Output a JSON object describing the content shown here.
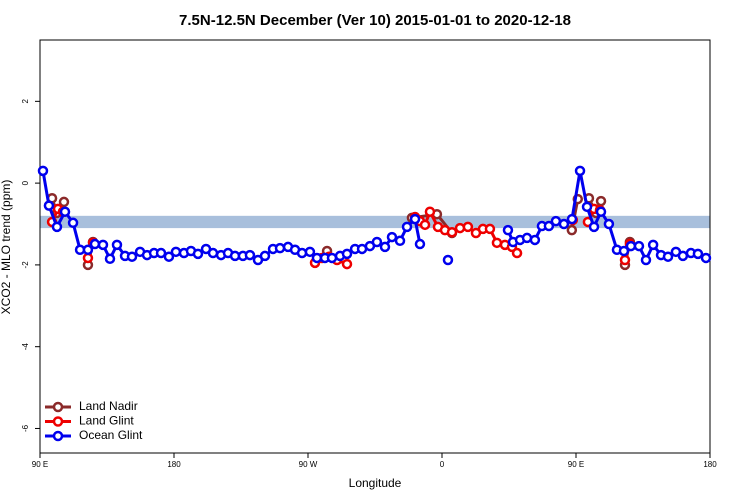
{
  "chart_data": {
    "type": "line",
    "title": "7.5N-12.5N December (Ver 10)   2015-01-01 to 2020-12-18",
    "x_label": "Longitude",
    "y_label": "XCO2 - MLO trend (ppm)",
    "xlim": [
      90,
      540
    ],
    "xticks": [
      {
        "value": 90,
        "label": "90 E"
      },
      {
        "value": 180,
        "label": "180"
      },
      {
        "value": 270,
        "label": "90 W"
      },
      {
        "value": 360,
        "label": "0"
      },
      {
        "value": 450,
        "label": "90 E"
      },
      {
        "value": 540,
        "label": "180"
      }
    ],
    "ylim": [
      -6.6,
      3.5
    ],
    "yticks": [
      2,
      0,
      -2,
      -4,
      -6
    ],
    "reference_band": {
      "ylim": [
        -1.1,
        -0.8
      ],
      "color": "#a8bfdc"
    },
    "legend": "bottom-left",
    "series": [
      {
        "name": "Land Nadir",
        "color": "#8b2a2a",
        "x": [
          98.1,
          101.4,
          106.1,
          null,
          122.2,
          125.6,
          null,
          282.8,
          null,
          339.8,
          356.6,
          366.7,
          null,
          447.2,
          451.2,
          null,
          458.7,
          463.4,
          466.8,
          null,
          482.9,
          486.2
        ],
        "values": [
          -0.37,
          -0.73,
          -0.46,
          null,
          -2.0,
          -1.44,
          null,
          -1.66,
          null,
          -0.85,
          -0.76,
          -1.22,
          null,
          -1.15,
          -0.39,
          null,
          -0.37,
          -0.73,
          -0.44,
          null,
          -2.0,
          -1.44
        ]
      },
      {
        "name": "Land Glint",
        "color": "#ee0000",
        "x": [
          98.1,
          102.1,
          105.4,
          null,
          122.2,
          125.6,
          null,
          274.7,
          279.4,
          284.1,
          289.5,
          296.2,
          null,
          341.9,
          345.2,
          348.6,
          351.9,
          357.3,
          362.0,
          366.7,
          372.1,
          377.4,
          382.8,
          387.5,
          392.2,
          396.9,
          402.3,
          407.0,
          410.4,
          null,
          447.9,
          null,
          458.0,
          462.1,
          466.1,
          null,
          482.9,
          486.2
        ],
        "values": [
          -0.95,
          -0.63,
          -0.7,
          null,
          -1.83,
          -1.46,
          null,
          -1.95,
          -1.83,
          -1.8,
          -1.88,
          -1.98,
          null,
          -0.83,
          -0.93,
          -1.02,
          -0.7,
          -1.07,
          -1.15,
          -1.2,
          -1.1,
          -1.07,
          -1.22,
          -1.12,
          -1.12,
          -1.46,
          -1.51,
          -1.56,
          -1.71,
          null,
          -0.9,
          null,
          -0.95,
          -0.63,
          -0.66,
          null,
          -1.88,
          -1.49
        ]
      },
      {
        "name": "Ocean Glint",
        "color": "#0000ee",
        "x": [
          92.0,
          96.0,
          101.4,
          106.8,
          112.2,
          116.9,
          122.2,
          126.9,
          132.3,
          137.0,
          141.7,
          147.1,
          151.8,
          157.2,
          161.9,
          166.6,
          171.3,
          176.6,
          181.3,
          186.7,
          191.4,
          196.1,
          201.5,
          206.2,
          211.6,
          216.3,
          221.0,
          226.3,
          231.0,
          236.4,
          241.1,
          246.5,
          251.2,
          256.6,
          261.3,
          266.0,
          271.3,
          276.0,
          281.4,
          286.1,
          291.5,
          296.2,
          301.6,
          306.3,
          311.6,
          316.3,
          321.7,
          326.4,
          331.8,
          336.5,
          341.9,
          345.2,
          null,
          364.0,
          null,
          404.3,
          407.7,
          412.4,
          417.1,
          422.4,
          427.1,
          431.8,
          436.5,
          441.9,
          447.3,
          452.7,
          457.4,
          462.1,
          466.8,
          472.1,
          477.5,
          482.2,
          486.9,
          492.3,
          497.0,
          501.8,
          507.1,
          511.8,
          517.1,
          521.8,
          527.2,
          531.9,
          537.3
        ],
        "values": [
          0.3,
          -0.55,
          -1.07,
          -0.7,
          -0.97,
          -1.63,
          -1.63,
          -1.49,
          -1.51,
          -1.85,
          -1.51,
          -1.78,
          -1.8,
          -1.68,
          -1.76,
          -1.71,
          -1.71,
          -1.8,
          -1.68,
          -1.71,
          -1.66,
          -1.73,
          -1.61,
          -1.71,
          -1.76,
          -1.71,
          -1.78,
          -1.78,
          -1.76,
          -1.88,
          -1.78,
          -1.61,
          -1.59,
          -1.56,
          -1.63,
          -1.71,
          -1.68,
          -1.83,
          -1.83,
          -1.83,
          -1.78,
          -1.73,
          -1.61,
          -1.61,
          -1.54,
          -1.44,
          -1.56,
          -1.32,
          -1.41,
          -1.07,
          -0.88,
          -1.49,
          null,
          -1.88,
          null,
          -1.15,
          -1.44,
          -1.39,
          -1.34,
          -1.39,
          -1.05,
          -1.05,
          -0.93,
          -1.0,
          -0.88,
          0.3,
          -0.58,
          -1.07,
          -0.7,
          -1.0,
          -1.63,
          -1.66,
          -1.54,
          -1.54,
          -1.88,
          -1.51,
          -1.76,
          -1.8,
          -1.68,
          -1.78,
          -1.71,
          -1.73,
          -1.83
        ]
      }
    ]
  }
}
